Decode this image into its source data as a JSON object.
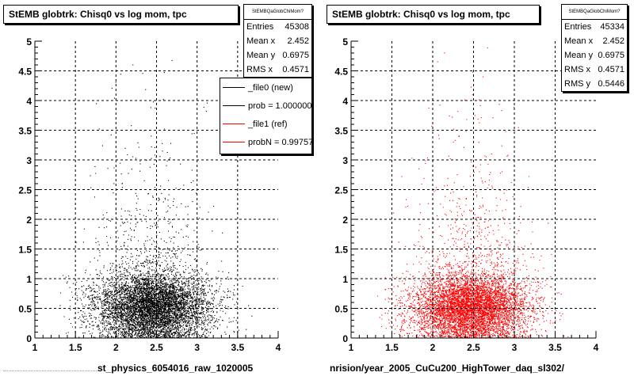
{
  "colors": {
    "series_new": "#000000",
    "series_ref": "#ff0000",
    "grid": "#000000"
  },
  "left_panel": {
    "title": "StEMB globtrk: Chisq0 vs log mom, tpc",
    "stats": {
      "header": "StEMBQaGlobChiMom?",
      "rows": [
        {
          "label": "Entries",
          "value": "45308"
        },
        {
          "label": "Mean x",
          "value": "2.452"
        },
        {
          "label": "Mean y",
          "value": "0.6975"
        },
        {
          "label": "RMS x",
          "value": "0.4571"
        }
      ]
    },
    "legend": [
      {
        "label": "_file0 (new)",
        "color": "#000000"
      },
      {
        "label": "prob = 1.000000",
        "color": "#000000"
      },
      {
        "label": "_file1 (ref)",
        "color": "#ff0000"
      },
      {
        "label": "probN = 0.997570",
        "color": "#ff0000"
      }
    ],
    "xaxis_title": "st_physics_6054016_raw_1020005"
  },
  "right_panel": {
    "title": "StEMB globtrk: Chisq0 vs log mom, tpc",
    "stats": {
      "header": "StEMBQaGlobChiMom?",
      "rows": [
        {
          "label": "Entries",
          "value": "45334"
        },
        {
          "label": "Mean x",
          "value": "2.452"
        },
        {
          "label": "Mean y",
          "value": "0.6975"
        },
        {
          "label": "RMS x",
          "value": "0.4571"
        },
        {
          "label": "RMS y",
          "value": "0.5446"
        }
      ]
    },
    "xaxis_title": "nrision/year_2005_CuCu200_HighTower_daq_sl302/"
  },
  "chart_data": [
    {
      "type": "scatter",
      "title": "StEMB globtrk: Chisq0 vs log mom, tpc",
      "xlabel": "st_physics_6054016_raw_1020005",
      "ylabel": "",
      "xlim": [
        1,
        4
      ],
      "ylim": [
        0,
        5
      ],
      "xticks": [
        "1",
        "1.5",
        "2",
        "2.5",
        "3",
        "3.5",
        "4"
      ],
      "yticks": [
        "0",
        "0.5",
        "1",
        "1.5",
        "2",
        "2.5",
        "3",
        "3.5",
        "4",
        "4.5",
        "5"
      ],
      "grid": true,
      "series": [
        {
          "name": "_file0 (new)",
          "color": "#000000",
          "entries": 45308,
          "mean_x": 2.452,
          "mean_y": 0.6975,
          "rms_x": 0.4571,
          "x_min": 1.3,
          "x_max": 3.7
        }
      ]
    },
    {
      "type": "scatter",
      "title": "StEMB globtrk: Chisq0 vs log mom, tpc",
      "xlabel": "nrision/year_2005_CuCu200_HighTower_daq_sl302/",
      "ylabel": "",
      "xlim": [
        1,
        4
      ],
      "ylim": [
        0,
        5
      ],
      "xticks": [
        "1",
        "1.5",
        "2",
        "2.5",
        "3",
        "3.5",
        "4"
      ],
      "yticks": [
        "0",
        "0.5",
        "1",
        "1.5",
        "2",
        "2.5",
        "3",
        "3.5",
        "4",
        "4.5",
        "5"
      ],
      "grid": true,
      "series": [
        {
          "name": "_file1 (ref)",
          "color": "#ff0000",
          "entries": 45334,
          "mean_x": 2.452,
          "mean_y": 0.6975,
          "rms_x": 0.4571,
          "rms_y": 0.5446,
          "x_min": 1.3,
          "x_max": 3.7
        }
      ]
    }
  ]
}
